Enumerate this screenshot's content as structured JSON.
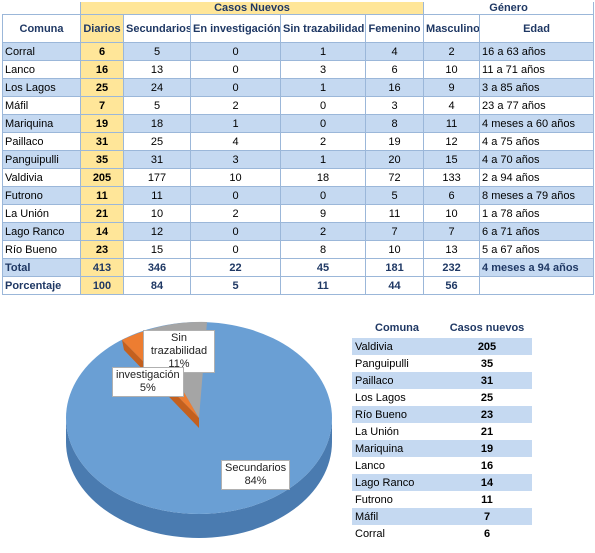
{
  "headers": {
    "casos_nuevos": "Casos Nuevos",
    "genero": "Género",
    "comuna": "Comuna",
    "diarios": "Diarios",
    "secundarios": "Secundarios",
    "en_investigacion": "En investigación",
    "sin_trazabilidad": "Sin trazabilidad",
    "femenino": "Femenino",
    "masculino": "Masculino",
    "edad": "Edad"
  },
  "rows": [
    {
      "comuna": "Corral",
      "diarios": "6",
      "secundarios": "5",
      "investigacion": "0",
      "sin_traz": "1",
      "fem": "4",
      "masc": "2",
      "edad": "16 a 63 años"
    },
    {
      "comuna": "Lanco",
      "diarios": "16",
      "secundarios": "13",
      "investigacion": "0",
      "sin_traz": "3",
      "fem": "6",
      "masc": "10",
      "edad": "11 a 71 años"
    },
    {
      "comuna": "Los Lagos",
      "diarios": "25",
      "secundarios": "24",
      "investigacion": "0",
      "sin_traz": "1",
      "fem": "16",
      "masc": "9",
      "edad": "3 a 85 años"
    },
    {
      "comuna": "Máfil",
      "diarios": "7",
      "secundarios": "5",
      "investigacion": "2",
      "sin_traz": "0",
      "fem": "3",
      "masc": "4",
      "edad": "23 a 77 años"
    },
    {
      "comuna": "Mariquina",
      "diarios": "19",
      "secundarios": "18",
      "investigacion": "1",
      "sin_traz": "0",
      "fem": "8",
      "masc": "11",
      "edad": "4 meses a 60 años"
    },
    {
      "comuna": "Paillaco",
      "diarios": "31",
      "secundarios": "25",
      "investigacion": "4",
      "sin_traz": "2",
      "fem": "19",
      "masc": "12",
      "edad": "4 a 75 años"
    },
    {
      "comuna": "Panguipulli",
      "diarios": "35",
      "secundarios": "31",
      "investigacion": "3",
      "sin_traz": "1",
      "fem": "20",
      "masc": "15",
      "edad": "4 a 70 años"
    },
    {
      "comuna": "Valdivia",
      "diarios": "205",
      "secundarios": "177",
      "investigacion": "10",
      "sin_traz": "18",
      "fem": "72",
      "masc": "133",
      "edad": "2 a 94 años"
    },
    {
      "comuna": "Futrono",
      "diarios": "11",
      "secundarios": "11",
      "investigacion": "0",
      "sin_traz": "0",
      "fem": "5",
      "masc": "6",
      "edad": "8 meses a 79 años"
    },
    {
      "comuna": "La Unión",
      "diarios": "21",
      "secundarios": "10",
      "investigacion": "2",
      "sin_traz": "9",
      "fem": "11",
      "masc": "10",
      "edad": "1 a 78 años"
    },
    {
      "comuna": "Lago Ranco",
      "diarios": "14",
      "secundarios": "12",
      "investigacion": "0",
      "sin_traz": "2",
      "fem": "7",
      "masc": "7",
      "edad": "6 a 71 años"
    },
    {
      "comuna": "Río Bueno",
      "diarios": "23",
      "secundarios": "15",
      "investigacion": "0",
      "sin_traz": "8",
      "fem": "10",
      "masc": "13",
      "edad": "5 a 67 años"
    }
  ],
  "total": {
    "comuna": "Total",
    "diarios": "413",
    "secundarios": "346",
    "investigacion": "22",
    "sin_traz": "45",
    "fem": "181",
    "masc": "232",
    "edad": "4 meses a 94 años"
  },
  "porcentaje": {
    "comuna": "Porcentaje",
    "diarios": "100",
    "secundarios": "84",
    "investigacion": "5",
    "sin_traz": "11",
    "fem": "44",
    "masc": "56",
    "edad": ""
  },
  "pie": {
    "sin_trazabilidad_label": "Sin trazabilidad",
    "sin_trazabilidad_pct": "11%",
    "investigacion_label": "investigación",
    "investigacion_pct": "5%",
    "secundarios_label": "Secundarios",
    "secundarios_pct": "84%",
    "colors": {
      "secundarios": "#6a9fd4",
      "investigacion": "#ed7d31",
      "sin_trazabilidad": "#a5a5a5"
    }
  },
  "side_table": {
    "col_comuna": "Comuna",
    "col_casos": "Casos nuevos",
    "rows": [
      {
        "comuna": "Valdivia",
        "casos": "205"
      },
      {
        "comuna": "Panguipulli",
        "casos": "35"
      },
      {
        "comuna": "Paillaco",
        "casos": "31"
      },
      {
        "comuna": "Los Lagos",
        "casos": "25"
      },
      {
        "comuna": "Río Bueno",
        "casos": "23"
      },
      {
        "comuna": "La Unión",
        "casos": "21"
      },
      {
        "comuna": "Mariquina",
        "casos": "19"
      },
      {
        "comuna": "Lanco",
        "casos": "16"
      },
      {
        "comuna": "Lago Ranco",
        "casos": "14"
      },
      {
        "comuna": "Futrono",
        "casos": "11"
      },
      {
        "comuna": "Máfil",
        "casos": "7"
      },
      {
        "comuna": "Corral",
        "casos": "6"
      }
    ]
  }
}
